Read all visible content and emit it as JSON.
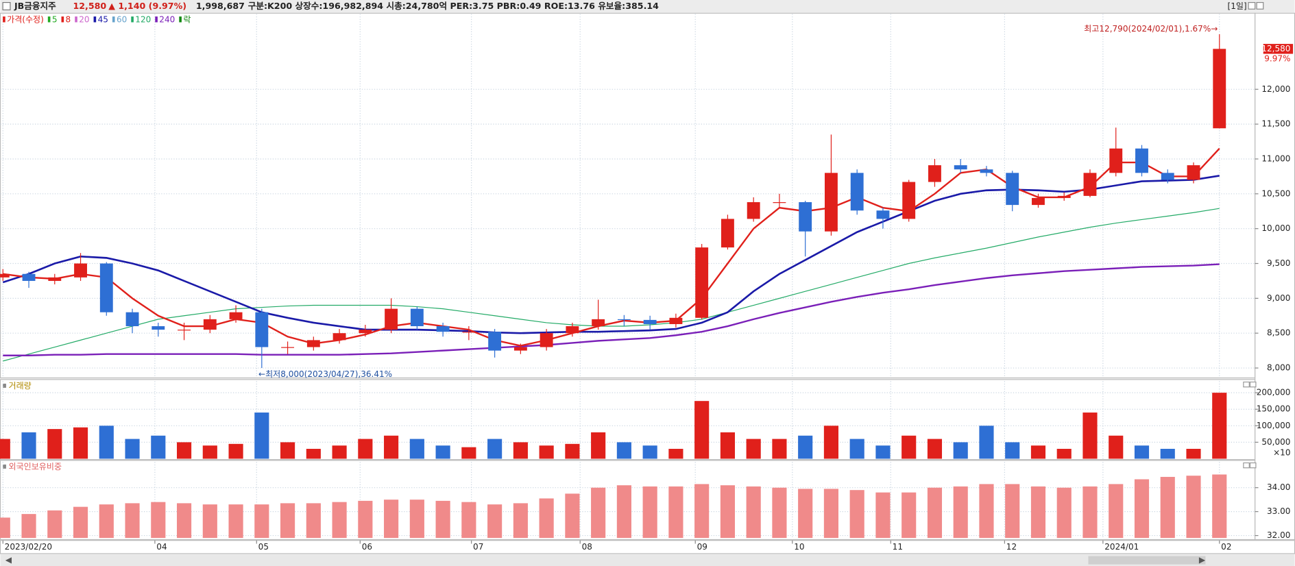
{
  "header": {
    "name": "JB금융지주",
    "price": "12,580",
    "change": "▲ 1,140 (9.97%)",
    "volume": "1,998,687",
    "info": "구분:K200 상장수:196,982,894 시총:24,780억 PER:3.75 PBR:0.49 ROE:13.76 유보율:385.14",
    "period": "[1일]"
  },
  "chart_data": [
    {
      "type": "candlestick",
      "legend": [
        {
          "name": "가격(수정)",
          "color": "#e0201b"
        },
        {
          "name": "5",
          "color": "#22aa22"
        },
        {
          "name": "8",
          "color": "#e0201b"
        },
        {
          "name": "20",
          "color": "#cc66cc"
        },
        {
          "name": "45",
          "color": "#1a1aa8"
        },
        {
          "name": "60",
          "color": "#66a3cc"
        },
        {
          "name": "120",
          "color": "#22aa66"
        },
        {
          "name": "240",
          "color": "#7a1fb8"
        },
        {
          "name": "락",
          "color": "#118811"
        }
      ],
      "x": [
        0,
        1,
        2,
        3,
        4,
        5,
        6,
        7,
        8,
        9,
        10,
        11,
        12,
        13,
        14,
        15,
        16,
        17,
        18,
        19,
        20,
        21,
        22,
        23,
        24,
        25,
        26,
        27,
        28,
        29,
        30,
        31,
        32,
        33,
        34,
        35,
        36,
        37,
        38,
        39,
        40,
        41,
        42,
        43,
        44,
        45,
        46,
        47
      ],
      "open": [
        9300,
        9350,
        9250,
        9300,
        9500,
        8800,
        8600,
        8550,
        8550,
        8700,
        8800,
        8300,
        8300,
        8400,
        8500,
        8550,
        8850,
        8600,
        8520,
        8520,
        8250,
        8300,
        8500,
        8600,
        8700,
        8690,
        8630,
        8720,
        9730,
        10140,
        10380,
        10380,
        9960,
        10800,
        10260,
        10140,
        10670,
        10910,
        10850,
        10800,
        10340,
        10440,
        10470,
        10800,
        11150,
        10800,
        10700,
        11440
      ],
      "high": [
        9420,
        9380,
        9350,
        9650,
        9520,
        8850,
        8650,
        8650,
        8760,
        8900,
        8850,
        8380,
        8450,
        8560,
        8620,
        9000,
        8880,
        8650,
        8600,
        8560,
        8350,
        8560,
        8650,
        8980,
        8760,
        8750,
        8780,
        9780,
        10200,
        10450,
        10500,
        10400,
        11350,
        10850,
        10300,
        10700,
        11000,
        11000,
        10900,
        10830,
        10500,
        10520,
        10850,
        11450,
        11200,
        10850,
        10950,
        12790
      ],
      "low": [
        9250,
        9150,
        9200,
        9250,
        8750,
        8500,
        8450,
        8400,
        8500,
        8650,
        8000,
        8200,
        8250,
        8350,
        8450,
        8500,
        8550,
        8450,
        8400,
        8150,
        8200,
        8250,
        8450,
        8550,
        8600,
        8550,
        8580,
        8700,
        9700,
        10100,
        10300,
        9600,
        9900,
        10200,
        10000,
        10100,
        10600,
        10800,
        10750,
        10250,
        10300,
        10400,
        10450,
        10750,
        10750,
        10650,
        10650,
        11440
      ],
      "close": [
        9350,
        9250,
        9300,
        9500,
        8800,
        8600,
        8550,
        8550,
        8700,
        8800,
        8300,
        8300,
        8400,
        8500,
        8550,
        8850,
        8600,
        8520,
        8520,
        8250,
        8300,
        8500,
        8600,
        8700,
        8690,
        8630,
        8720,
        9730,
        10140,
        10380,
        10380,
        9960,
        10800,
        10260,
        10140,
        10670,
        10910,
        10850,
        10800,
        10340,
        10440,
        10470,
        10800,
        11150,
        10800,
        10700,
        10910,
        12580
      ],
      "up_color": "#e0201b",
      "down_color": "#2e6fd4",
      "series": [
        {
          "color": "#22aa66",
          "line_width": 1,
          "values": [
            8100,
            8200,
            8300,
            8400,
            8500,
            8600,
            8700,
            8750,
            8800,
            8850,
            8870,
            8890,
            8900,
            8900,
            8900,
            8900,
            8880,
            8850,
            8800,
            8750,
            8700,
            8650,
            8620,
            8600,
            8600,
            8620,
            8650,
            8700,
            8800,
            8900,
            9000,
            9100,
            9200,
            9300,
            9400,
            9500,
            9580,
            9650,
            9720,
            9800,
            9880,
            9950,
            10020,
            10080,
            10130,
            10180,
            10230,
            10290
          ]
        },
        {
          "color": "#7a1fb8",
          "line_width": 2,
          "values": [
            8180,
            8180,
            8190,
            8190,
            8200,
            8200,
            8200,
            8200,
            8200,
            8200,
            8190,
            8190,
            8190,
            8190,
            8200,
            8210,
            8230,
            8250,
            8270,
            8290,
            8310,
            8330,
            8360,
            8390,
            8410,
            8430,
            8470,
            8520,
            8600,
            8700,
            8790,
            8870,
            8950,
            9020,
            9080,
            9130,
            9190,
            9240,
            9290,
            9330,
            9360,
            9390,
            9410,
            9430,
            9450,
            9460,
            9470,
            9490
          ]
        },
        {
          "color": "#1a1aa8",
          "line_width": 2.2,
          "values": [
            9230,
            9350,
            9500,
            9600,
            9580,
            9500,
            9400,
            9250,
            9100,
            8950,
            8800,
            8720,
            8650,
            8600,
            8550,
            8550,
            8550,
            8540,
            8530,
            8510,
            8500,
            8510,
            8520,
            8520,
            8530,
            8540,
            8560,
            8650,
            8800,
            9100,
            9350,
            9550,
            9750,
            9950,
            10100,
            10250,
            10400,
            10500,
            10550,
            10560,
            10550,
            10530,
            10560,
            10620,
            10680,
            10690,
            10700,
            10760
          ]
        },
        {
          "color": "#e0201b",
          "line_width": 2,
          "values": [
            9350,
            9300,
            9280,
            9350,
            9300,
            9000,
            8750,
            8600,
            8600,
            8700,
            8650,
            8450,
            8350,
            8400,
            8480,
            8600,
            8650,
            8600,
            8550,
            8400,
            8320,
            8400,
            8500,
            8600,
            8680,
            8650,
            8680,
            9000,
            9500,
            10000,
            10300,
            10250,
            10300,
            10450,
            10300,
            10250,
            10500,
            10800,
            10850,
            10600,
            10450,
            10450,
            10600,
            10950,
            10950,
            10750,
            10750,
            11150
          ]
        }
      ],
      "high_annotation": "최고12,790(2024/02/01),1.67%→",
      "low_annotation": "←최저8,000(2023/04/27),36.41%",
      "last_price_label": "12,580",
      "last_change_label": "9.97%",
      "ylim": [
        7870,
        13080
      ],
      "yticks": [
        {
          "value": 8000,
          "label": "8,000"
        },
        {
          "value": 8500,
          "label": "8,500"
        },
        {
          "value": 9000,
          "label": "9,000"
        },
        {
          "value": 9500,
          "label": "9,500"
        },
        {
          "value": 10000,
          "label": "10,000"
        },
        {
          "value": 10500,
          "label": "10,500"
        },
        {
          "value": 11000,
          "label": "11,000"
        },
        {
          "value": 11500,
          "label": "11,500"
        },
        {
          "value": 12000,
          "label": "12,000"
        }
      ],
      "grid": true
    },
    {
      "type": "bar",
      "title": "거래량",
      "x": [
        0,
        1,
        2,
        3,
        4,
        5,
        6,
        7,
        8,
        9,
        10,
        11,
        12,
        13,
        14,
        15,
        16,
        17,
        18,
        19,
        20,
        21,
        22,
        23,
        24,
        25,
        26,
        27,
        28,
        29,
        30,
        31,
        32,
        33,
        34,
        35,
        36,
        37,
        38,
        39,
        40,
        41,
        42,
        43,
        44,
        45,
        46,
        47
      ],
      "values": [
        60000,
        80000,
        90000,
        95000,
        100000,
        60000,
        70000,
        50000,
        40000,
        45000,
        140000,
        50000,
        30000,
        40000,
        60000,
        70000,
        60000,
        40000,
        35000,
        60000,
        50000,
        40000,
        45000,
        80000,
        50000,
        40000,
        30000,
        175000,
        80000,
        60000,
        60000,
        70000,
        100000,
        60000,
        40000,
        70000,
        60000,
        50000,
        100000,
        50000,
        40000,
        30000,
        140000,
        70000,
        40000,
        30000,
        30000,
        200000
      ],
      "unit_label": "×10",
      "ylim": [
        0,
        235000
      ],
      "yticks": [
        {
          "value": 50000,
          "label": "50,000"
        },
        {
          "value": 100000,
          "label": "100,000"
        },
        {
          "value": 150000,
          "label": "150,000"
        },
        {
          "value": 200000,
          "label": "200,000"
        }
      ],
      "grid": true
    },
    {
      "type": "bar",
      "title": "외국인보유비중",
      "color": "#f08a8a",
      "x": [
        0,
        1,
        2,
        3,
        4,
        5,
        6,
        7,
        8,
        9,
        10,
        11,
        12,
        13,
        14,
        15,
        16,
        17,
        18,
        19,
        20,
        21,
        22,
        23,
        24,
        25,
        26,
        27,
        28,
        29,
        30,
        31,
        32,
        33,
        34,
        35,
        36,
        37,
        38,
        39,
        40,
        41,
        42,
        43,
        44,
        45,
        46,
        47
      ],
      "values": [
        32.75,
        32.9,
        33.05,
        33.2,
        33.3,
        33.35,
        33.4,
        33.35,
        33.3,
        33.3,
        33.3,
        33.35,
        33.35,
        33.4,
        33.45,
        33.5,
        33.5,
        33.45,
        33.4,
        33.3,
        33.35,
        33.55,
        33.75,
        34.0,
        34.1,
        34.05,
        34.05,
        34.15,
        34.1,
        34.05,
        34.0,
        33.95,
        33.95,
        33.9,
        33.8,
        33.8,
        34.0,
        34.05,
        34.15,
        34.15,
        34.05,
        34.0,
        34.05,
        34.15,
        34.35,
        34.45,
        34.5,
        34.55
      ],
      "ylim": [
        31.9,
        35.07
      ],
      "yticks": [
        {
          "value": 32,
          "label": "32.00"
        },
        {
          "value": 33,
          "label": "33.00"
        },
        {
          "value": 34,
          "label": "34.00"
        }
      ],
      "xlim": [
        -0.1,
        47.1
      ],
      "xticks": [
        {
          "value": 0,
          "label": "2023/02/20"
        },
        {
          "value": 5.87,
          "label": "04"
        },
        {
          "value": 9.8,
          "label": "05"
        },
        {
          "value": 13.8,
          "label": "06"
        },
        {
          "value": 18.1,
          "label": "07"
        },
        {
          "value": 22.3,
          "label": "08"
        },
        {
          "value": 26.75,
          "label": "09"
        },
        {
          "value": 30.5,
          "label": "10"
        },
        {
          "value": 34.3,
          "label": "11"
        },
        {
          "value": 38.7,
          "label": "12"
        },
        {
          "value": 42.5,
          "label": "2024/01"
        },
        {
          "value": 47,
          "label": "02"
        }
      ],
      "grid": true
    }
  ]
}
